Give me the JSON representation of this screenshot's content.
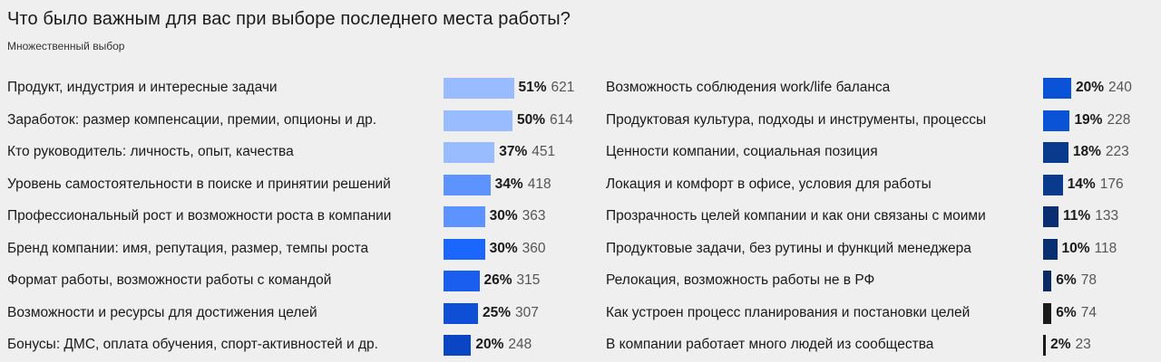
{
  "title": "Что было важным для вас при выборе последнего места работы?",
  "subtitle": "Множественный выбор",
  "chart_data": [
    {
      "type": "bar",
      "orientation": "horizontal",
      "categories": [
        "Продукт, индустрия и интересные задачи",
        "Заработок: размер компенсации, премии, опционы и др.",
        "Кто руководитель: личность, опыт, качества",
        "Уровень самостоятельности в поиске и принятии решений",
        "Профессиональный рост и возможности роста в компании",
        "Бренд компании: имя, репутация, размер, темпы роста",
        "Формат работы, возможности работы с командой",
        "Возможности и ресурсы для достижения целей",
        "Бонусы: ДМС, оплата обучения, спорт-активностей и др."
      ],
      "values": [
        51,
        50,
        37,
        34,
        30,
        30,
        26,
        25,
        20
      ],
      "counts": [
        621,
        614,
        451,
        418,
        363,
        360,
        315,
        307,
        248
      ],
      "colors": [
        "#99bbff",
        "#99bbff",
        "#99bbff",
        "#5c93ff",
        "#5c93ff",
        "#1a66ff",
        "#1a5ef0",
        "#0f4fd6",
        "#0a46c4"
      ],
      "unit": "%"
    },
    {
      "type": "bar",
      "orientation": "horizontal",
      "categories": [
        "Возможность соблюдения work/life баланса",
        "Продуктовая культура, подходы и инструменты, процессы",
        "Ценности компании, социальная позиция",
        "Локация и комфорт в офисе, условия для работы",
        "Прозрачность целей компании и как они связаны с моими",
        "Продуктовые задачи, без рутины и функций менеджера",
        "Релокация, возможность работы не в РФ",
        "Как устроен процесс планирования и постановки целей",
        "В компании работает много людей из сообщества"
      ],
      "values": [
        20,
        19,
        18,
        14,
        11,
        10,
        6,
        6,
        2
      ],
      "counts": [
        240,
        228,
        223,
        176,
        133,
        118,
        78,
        74,
        23
      ],
      "colors": [
        "#0a52d6",
        "#0a52d6",
        "#0a3a8c",
        "#0a3a8c",
        "#0a2f70",
        "#0a2f70",
        "#0a2a66",
        "#1a1a1a",
        "#1a1a1a"
      ],
      "unit": "%"
    }
  ]
}
